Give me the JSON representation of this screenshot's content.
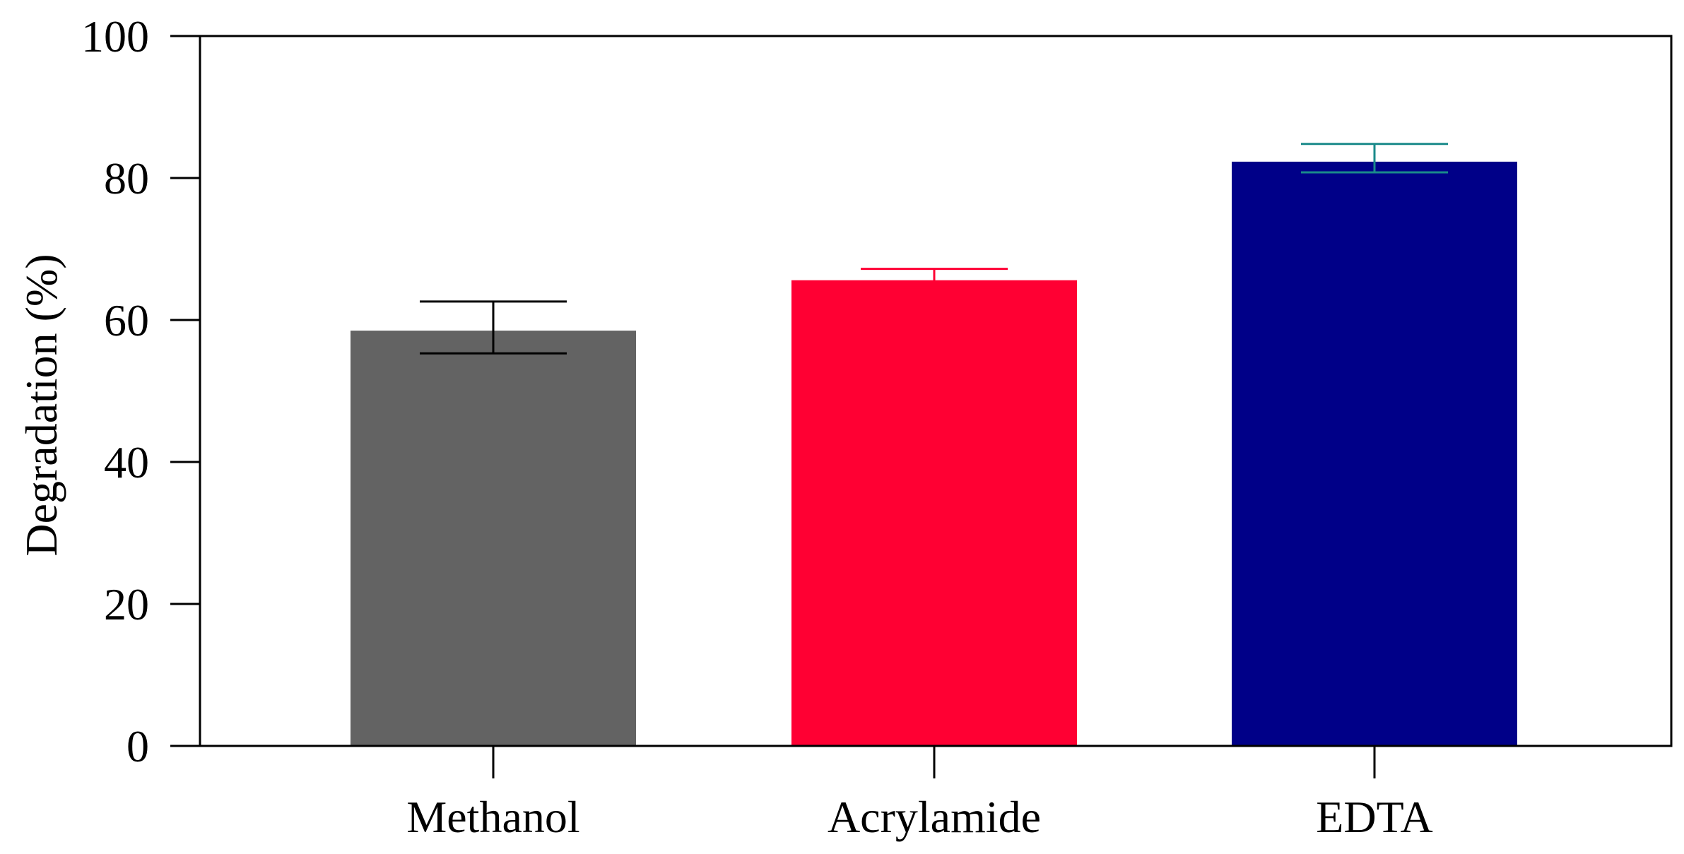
{
  "chart_data": {
    "type": "bar",
    "title": "",
    "xlabel": "",
    "ylabel": "Degradation (%)",
    "ylim": [
      0,
      100
    ],
    "yticks": [
      0,
      20,
      40,
      60,
      80,
      100
    ],
    "ytick_labels": [
      "0",
      "20",
      "40",
      "60",
      "80",
      "100"
    ],
    "categories": [
      "Methanol",
      "Acrylamide",
      "EDTA"
    ],
    "values": [
      58.5,
      65.6,
      82.3
    ],
    "errors": [
      [
        3.2,
        4.1
      ],
      [
        1.0,
        1.6
      ],
      [
        1.5,
        2.5
      ]
    ],
    "colors": [
      "#636363",
      "#ff0033",
      "#000088"
    ],
    "error_colors": [
      "#000000",
      "#ff0033",
      "#1a8a8a"
    ],
    "grid": false,
    "legend": "none"
  }
}
